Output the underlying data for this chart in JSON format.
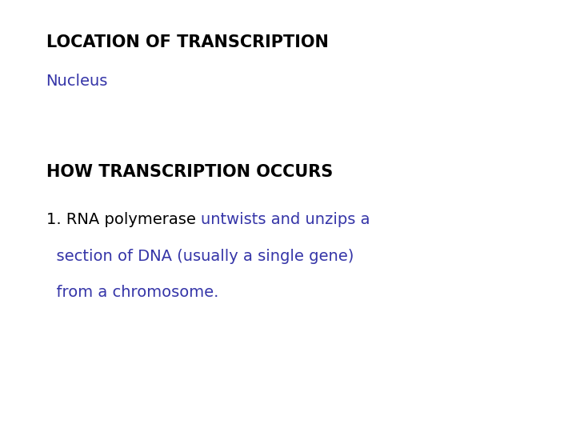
{
  "background_color": "#ffffff",
  "title1": "LOCATION OF TRANSCRIPTION",
  "title1_color": "#000000",
  "title1_fontsize": 15,
  "subtitle1": "Nucleus",
  "subtitle1_color": "#3535a8",
  "subtitle1_fontsize": 14,
  "title2": "HOW TRANSCRIPTION OCCURS",
  "title2_color": "#000000",
  "title2_fontsize": 15,
  "line1_black": "1. RNA polymerase ",
  "line1_blue": "untwists and unzips a",
  "line2_blue": "  section of DNA (usually a single gene)",
  "line3_blue": "  from a chromosome.",
  "blue_color": "#3535a8",
  "black_color": "#000000",
  "body_fontsize": 14,
  "fig_width": 7.2,
  "fig_height": 5.4,
  "dpi": 100
}
